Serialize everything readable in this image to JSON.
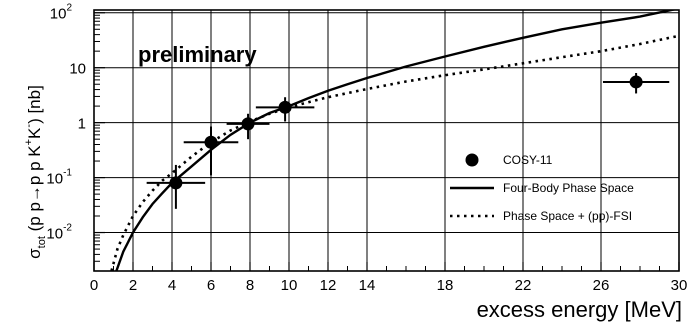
{
  "chart_data": {
    "type": "scatter",
    "title": "",
    "annotation": "preliminary",
    "xlabel": "excess energy  [MeV]",
    "ylabel": {
      "sigma": "σ",
      "tot": "tot",
      "reaction_start": " (p p",
      "reaction_end": "p p K",
      "kplus": "+",
      "kminus_k": "K",
      "kminus": "-",
      "close": ")  [nb]"
    },
    "xlim": [
      0,
      30
    ],
    "ylim_log10": [
      -2.7,
      2.05
    ],
    "y_scale": "log",
    "grid": true,
    "x_ticks": [
      0,
      2,
      4,
      6,
      8,
      10,
      12,
      14,
      18,
      22,
      26,
      30
    ],
    "x_tick_labels": [
      "0",
      "2",
      "4",
      "6",
      "8",
      "10",
      "12",
      "14",
      "18",
      "22",
      "26",
      "30"
    ],
    "x_grid_lines": [
      2,
      4,
      6,
      8,
      10,
      12,
      14,
      18,
      22,
      26
    ],
    "y_ticks": [
      {
        "value": 100,
        "base": "10",
        "exp": "2"
      },
      {
        "value": 10,
        "base": "10",
        "exp": ""
      },
      {
        "value": 1,
        "base": "1",
        "exp": ""
      },
      {
        "value": 0.1,
        "base": "10",
        "exp": "-1"
      },
      {
        "value": 0.01,
        "base": "10",
        "exp": "-2"
      }
    ],
    "y_grid_lines": [
      100,
      10,
      1,
      0.1,
      0.01
    ],
    "legend_position": "right",
    "legend": [
      {
        "label": "COSY-11",
        "style": "marker"
      },
      {
        "label": "Four-Body Phase Space",
        "style": "solid"
      },
      {
        "label": "Phase Space + (pp)-FSI",
        "style": "dotted"
      }
    ],
    "series": [
      {
        "name": "COSY-11",
        "style": "marker",
        "points": [
          {
            "x": 4.2,
            "y": 0.08,
            "x_err": 1.5,
            "y_low": 0.027,
            "y_high": 0.17
          },
          {
            "x": 6.0,
            "y": 0.44,
            "x_err": 1.4,
            "y_low": 0.11,
            "y_high": 0.85
          },
          {
            "x": 7.9,
            "y": 0.95,
            "x_err": 1.1,
            "y_low": 0.5,
            "y_high": 1.45
          },
          {
            "x": 9.8,
            "y": 1.9,
            "x_err": 1.5,
            "y_low": 1.05,
            "y_high": 2.9
          },
          {
            "x": 27.8,
            "y": 5.5,
            "x_err": 1.7,
            "y_low": 3.4,
            "y_high": 8.0
          }
        ]
      },
      {
        "name": "Four-Body Phase Space",
        "style": "solid",
        "x": [
          1.15,
          1.5,
          2,
          2.5,
          3,
          3.5,
          4,
          5,
          6,
          7,
          8,
          9,
          10,
          11,
          12,
          13,
          14,
          16,
          18,
          20,
          22,
          24,
          26,
          28,
          30
        ],
        "y": [
          0.002,
          0.0045,
          0.01,
          0.019,
          0.033,
          0.052,
          0.08,
          0.16,
          0.32,
          0.6,
          1.0,
          1.5,
          2.0,
          2.8,
          3.8,
          5.0,
          6.5,
          10.5,
          16,
          24,
          35,
          50,
          66,
          85,
          120
        ]
      },
      {
        "name": "Phase Space + (pp)-FSI",
        "style": "dotted",
        "x": [
          0.9,
          1.2,
          1.5,
          2,
          2.5,
          3,
          3.5,
          4,
          5,
          6,
          7,
          8,
          9,
          10,
          12,
          14,
          16,
          18,
          20,
          22,
          24,
          26,
          28,
          30
        ],
        "y": [
          0.002,
          0.005,
          0.009,
          0.02,
          0.036,
          0.058,
          0.088,
          0.12,
          0.24,
          0.44,
          0.72,
          1.05,
          1.45,
          1.9,
          2.9,
          4.1,
          5.6,
          7.3,
          9.3,
          12,
          15.5,
          20,
          27,
          38
        ]
      }
    ]
  }
}
